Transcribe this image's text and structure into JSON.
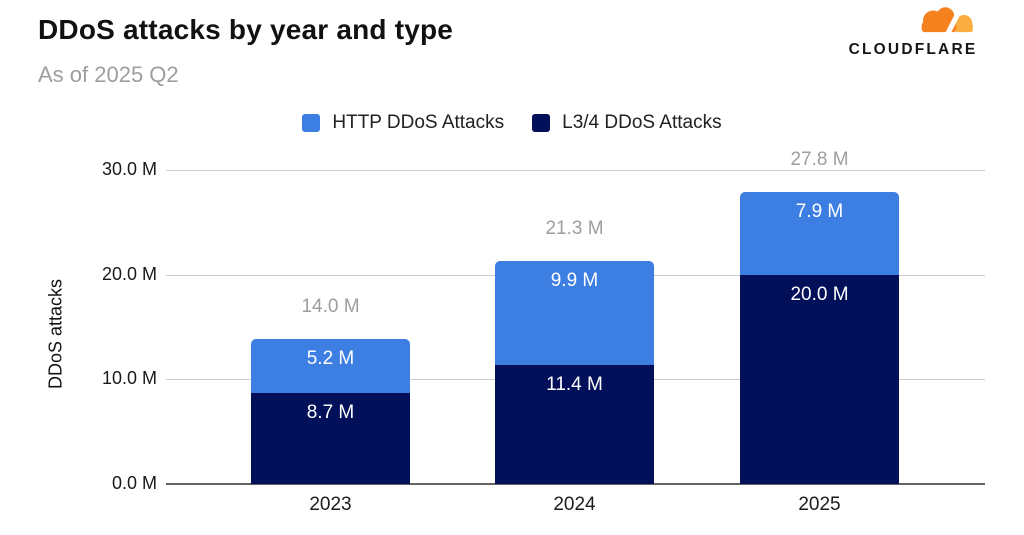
{
  "header": {
    "title": "DDoS attacks by year and type",
    "subtitle": "As of 2025 Q2"
  },
  "logo": {
    "brand": "CLOUDFLARE",
    "cloud_color": "#F6821F",
    "cloud_light_color": "#FBAD41"
  },
  "legend": [
    {
      "label": "HTTP DDoS Attacks",
      "color": "#3D7EE3"
    },
    {
      "label": "L3/4 DDoS Attacks",
      "color": "#020F59"
    }
  ],
  "chart_data": {
    "type": "bar",
    "stacked": true,
    "title": "DDoS attacks by year and type",
    "subtitle": "As of 2025 Q2",
    "categories": [
      "2023",
      "2024",
      "2025"
    ],
    "series": [
      {
        "name": "L3/4 DDoS Attacks",
        "color": "#020F59",
        "values": [
          8.7,
          11.4,
          20.0
        ],
        "labels": [
          "8.7 M",
          "11.4 M",
          "20.0 M"
        ]
      },
      {
        "name": "HTTP DDoS Attacks",
        "color": "#3D7EE3",
        "values": [
          5.2,
          9.9,
          7.9
        ],
        "labels": [
          "5.2 M",
          "9.9 M",
          "7.9 M"
        ]
      }
    ],
    "totals": [
      14.0,
      21.3,
      27.8
    ],
    "total_labels": [
      "14.0 M",
      "21.3 M",
      "27.8 M"
    ],
    "ylabel": "DDoS attacks",
    "yticks": [
      "0.0 M",
      "10.0 M",
      "20.0 M",
      "30.0 M"
    ],
    "ylim": [
      0,
      30
    ],
    "unit": "M",
    "grid": true,
    "legend_position": "top-center"
  }
}
